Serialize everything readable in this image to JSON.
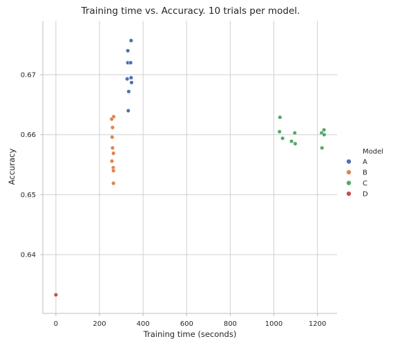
{
  "chart_data": {
    "type": "scatter",
    "title": "Training time vs. Accuracy. 10 trials per model.",
    "xlabel": "Training time (seconds)",
    "ylabel": "Accuracy",
    "xlim": [
      -60,
      1290
    ],
    "ylim": [
      0.6302,
      0.679
    ],
    "xticks": [
      0,
      200,
      400,
      600,
      800,
      1000,
      1200
    ],
    "yticks": [
      0.64,
      0.65,
      0.66,
      0.67
    ],
    "grid": true,
    "legend": {
      "title": "Model",
      "placement": "right"
    },
    "series": [
      {
        "name": "A",
        "color": "#4c72b0",
        "points": [
          [
            345,
            0.6757
          ],
          [
            330,
            0.674
          ],
          [
            330,
            0.672
          ],
          [
            343,
            0.672
          ],
          [
            345,
            0.6695
          ],
          [
            328,
            0.6693
          ],
          [
            347,
            0.6687
          ],
          [
            334,
            0.6672
          ],
          [
            332,
            0.664
          ],
          [
            327,
            0.6693
          ]
        ]
      },
      {
        "name": "B",
        "color": "#dd8452",
        "points": [
          [
            265,
            0.663
          ],
          [
            256,
            0.6626
          ],
          [
            260,
            0.6612
          ],
          [
            258,
            0.6596
          ],
          [
            260,
            0.6578
          ],
          [
            264,
            0.6569
          ],
          [
            257,
            0.6556
          ],
          [
            263,
            0.6545
          ],
          [
            264,
            0.654
          ],
          [
            264,
            0.6519
          ]
        ]
      },
      {
        "name": "C",
        "color": "#55a868",
        "points": [
          [
            1028,
            0.6629
          ],
          [
            1026,
            0.6605
          ],
          [
            1040,
            0.6594
          ],
          [
            1081,
            0.6589
          ],
          [
            1098,
            0.6585
          ],
          [
            1096,
            0.6603
          ],
          [
            1219,
            0.6603
          ],
          [
            1230,
            0.6608
          ],
          [
            1231,
            0.66
          ],
          [
            1221,
            0.6578
          ]
        ]
      },
      {
        "name": "D",
        "color": "#c44e52",
        "points": [
          [
            0,
            0.6333
          ]
        ]
      }
    ]
  }
}
